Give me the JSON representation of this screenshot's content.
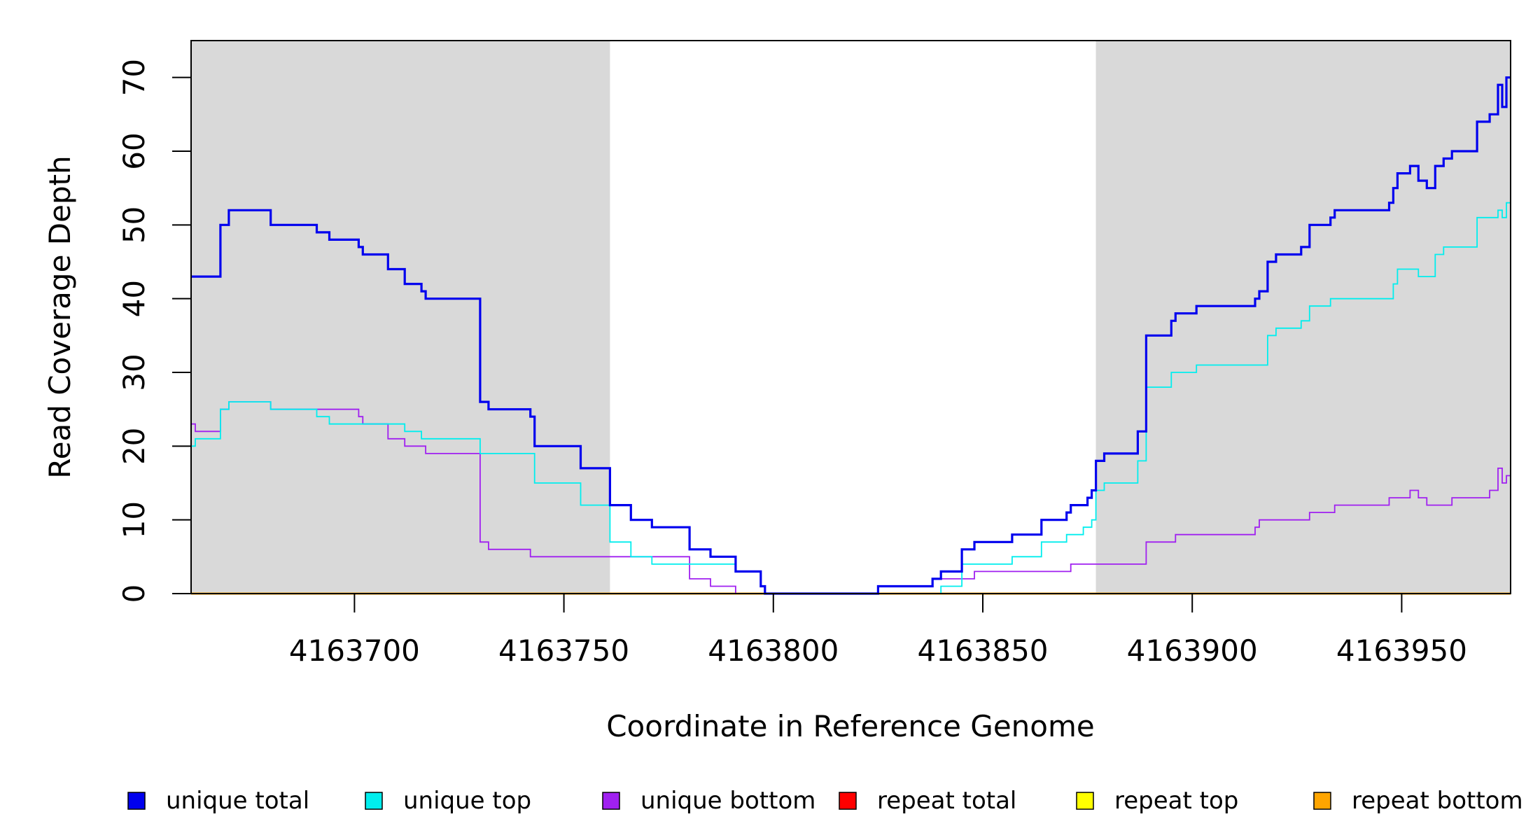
{
  "chart_data": {
    "type": "line",
    "xlabel": "Coordinate in Reference Genome",
    "ylabel": "Read Coverage Depth",
    "xlim": [
      4163661,
      4163976
    ],
    "ylim": [
      0,
      75
    ],
    "x_ticks": [
      4163700,
      4163750,
      4163800,
      4163850,
      4163900,
      4163950
    ],
    "y_ticks": [
      0,
      10,
      20,
      30,
      40,
      50,
      60,
      70
    ],
    "shaded_regions": [
      [
        4163661,
        4163761
      ],
      [
        4163877,
        4163976
      ]
    ],
    "series": [
      {
        "name": "unique total",
        "color": "#0000ee",
        "points": [
          [
            4163661,
            43
          ],
          [
            4163668,
            50
          ],
          [
            4163670,
            52
          ],
          [
            4163680,
            50
          ],
          [
            4163691,
            49
          ],
          [
            4163694,
            48
          ],
          [
            4163701,
            47
          ],
          [
            4163702,
            46
          ],
          [
            4163708,
            44
          ],
          [
            4163712,
            42
          ],
          [
            4163716,
            41
          ],
          [
            4163717,
            40
          ],
          [
            4163730,
            26
          ],
          [
            4163732,
            25
          ],
          [
            4163742,
            24
          ],
          [
            4163743,
            20
          ],
          [
            4163754,
            17
          ],
          [
            4163761,
            12
          ],
          [
            4163766,
            10
          ],
          [
            4163771,
            9
          ],
          [
            4163780,
            6
          ],
          [
            4163785,
            5
          ],
          [
            4163791,
            3
          ],
          [
            4163797,
            1
          ],
          [
            4163798,
            0
          ],
          [
            4163825,
            1
          ],
          [
            4163838,
            2
          ],
          [
            4163840,
            3
          ],
          [
            4163845,
            6
          ],
          [
            4163848,
            7
          ],
          [
            4163857,
            8
          ],
          [
            4163864,
            10
          ],
          [
            4163870,
            11
          ],
          [
            4163871,
            12
          ],
          [
            4163875,
            13
          ],
          [
            4163876,
            14
          ],
          [
            4163877,
            18
          ],
          [
            4163879,
            19
          ],
          [
            4163887,
            22
          ],
          [
            4163889,
            35
          ],
          [
            4163895,
            37
          ],
          [
            4163896,
            38
          ],
          [
            4163901,
            39
          ],
          [
            4163915,
            40
          ],
          [
            4163916,
            41
          ],
          [
            4163918,
            45
          ],
          [
            4163920,
            46
          ],
          [
            4163926,
            47
          ],
          [
            4163928,
            50
          ],
          [
            4163933,
            51
          ],
          [
            4163934,
            52
          ],
          [
            4163947,
            53
          ],
          [
            4163948,
            55
          ],
          [
            4163949,
            57
          ],
          [
            4163952,
            58
          ],
          [
            4163954,
            56
          ],
          [
            4163956,
            55
          ],
          [
            4163958,
            58
          ],
          [
            4163960,
            59
          ],
          [
            4163962,
            60
          ],
          [
            4163968,
            64
          ],
          [
            4163971,
            65
          ],
          [
            4163973,
            69
          ],
          [
            4163974,
            66
          ],
          [
            4163975,
            70
          ],
          [
            4163976,
            70
          ]
        ]
      },
      {
        "name": "unique top",
        "color": "#00eeee",
        "points": [
          [
            4163661,
            20
          ],
          [
            4163662,
            21
          ],
          [
            4163668,
            25
          ],
          [
            4163670,
            26
          ],
          [
            4163680,
            25
          ],
          [
            4163691,
            24
          ],
          [
            4163694,
            23
          ],
          [
            4163701,
            23
          ],
          [
            4163712,
            22
          ],
          [
            4163716,
            21
          ],
          [
            4163730,
            19
          ],
          [
            4163743,
            15
          ],
          [
            4163754,
            12
          ],
          [
            4163761,
            7
          ],
          [
            4163766,
            5
          ],
          [
            4163771,
            4
          ],
          [
            4163785,
            4
          ],
          [
            4163791,
            3
          ],
          [
            4163797,
            1
          ],
          [
            4163798,
            0
          ],
          [
            4163840,
            1
          ],
          [
            4163845,
            4
          ],
          [
            4163857,
            5
          ],
          [
            4163864,
            7
          ],
          [
            4163870,
            8
          ],
          [
            4163874,
            9
          ],
          [
            4163876,
            10
          ],
          [
            4163877,
            14
          ],
          [
            4163879,
            15
          ],
          [
            4163887,
            18
          ],
          [
            4163889,
            28
          ],
          [
            4163895,
            30
          ],
          [
            4163901,
            31
          ],
          [
            4163918,
            35
          ],
          [
            4163920,
            36
          ],
          [
            4163926,
            37
          ],
          [
            4163928,
            39
          ],
          [
            4163933,
            40
          ],
          [
            4163948,
            42
          ],
          [
            4163949,
            44
          ],
          [
            4163954,
            43
          ],
          [
            4163958,
            46
          ],
          [
            4163960,
            47
          ],
          [
            4163968,
            51
          ],
          [
            4163973,
            52
          ],
          [
            4163974,
            51
          ],
          [
            4163975,
            53
          ],
          [
            4163976,
            54
          ]
        ]
      },
      {
        "name": "unique bottom",
        "color": "#a020f0",
        "points": [
          [
            4163661,
            23
          ],
          [
            4163662,
            22
          ],
          [
            4163668,
            25
          ],
          [
            4163670,
            26
          ],
          [
            4163680,
            25
          ],
          [
            4163701,
            24
          ],
          [
            4163702,
            23
          ],
          [
            4163708,
            21
          ],
          [
            4163712,
            20
          ],
          [
            4163717,
            19
          ],
          [
            4163730,
            7
          ],
          [
            4163732,
            6
          ],
          [
            4163742,
            5
          ],
          [
            4163780,
            2
          ],
          [
            4163785,
            1
          ],
          [
            4163791,
            0
          ],
          [
            4163825,
            1
          ],
          [
            4163838,
            2
          ],
          [
            4163848,
            3
          ],
          [
            4163871,
            4
          ],
          [
            4163889,
            7
          ],
          [
            4163896,
            8
          ],
          [
            4163915,
            9
          ],
          [
            4163916,
            10
          ],
          [
            4163928,
            11
          ],
          [
            4163934,
            12
          ],
          [
            4163947,
            13
          ],
          [
            4163952,
            14
          ],
          [
            4163954,
            13
          ],
          [
            4163956,
            12
          ],
          [
            4163962,
            13
          ],
          [
            4163971,
            14
          ],
          [
            4163973,
            17
          ],
          [
            4163974,
            15
          ],
          [
            4163975,
            16
          ],
          [
            4163976,
            16
          ]
        ]
      },
      {
        "name": "repeat total",
        "color": "#ff0000",
        "points": [
          [
            4163661,
            0
          ],
          [
            4163976,
            0
          ]
        ]
      },
      {
        "name": "repeat top",
        "color": "#ffff00",
        "points": [
          [
            4163661,
            0
          ],
          [
            4163976,
            0
          ]
        ]
      },
      {
        "name": "repeat bottom",
        "color": "#ffa500",
        "points": [
          [
            4163661,
            0
          ],
          [
            4163976,
            0
          ]
        ]
      }
    ],
    "legend": "bottom"
  }
}
